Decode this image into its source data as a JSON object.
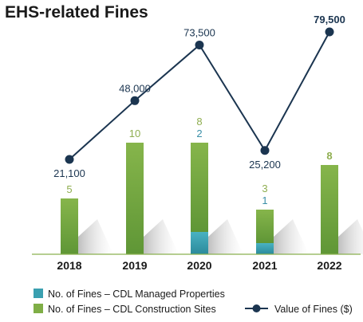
{
  "chart_data": {
    "type": "bar+line",
    "title": "EHS-related Fines",
    "categories": [
      "2018",
      "2019",
      "2020",
      "2021",
      "2022"
    ],
    "bar_series": [
      {
        "name": "No. of Fines – CDL Managed Properties",
        "values": [
          0,
          0,
          2,
          1,
          0
        ],
        "color": "#3aa0b0"
      },
      {
        "name": "No. of Fines – CDL Construction Sites",
        "values": [
          5,
          10,
          8,
          3,
          8
        ],
        "color": "#7fae46"
      }
    ],
    "bar_labels": {
      "construction": [
        "5",
        "10",
        "8",
        "3",
        "8"
      ],
      "managed": [
        "",
        "",
        "2",
        "1",
        ""
      ]
    },
    "line_series": {
      "name": "Value of Fines ($)",
      "values": [
        21100,
        48000,
        73500,
        25200,
        79500
      ],
      "labels": [
        "21,100",
        "48,000",
        "73,500",
        "25,200",
        "79,500"
      ],
      "color": "#1b3550"
    },
    "legend": {
      "managed": "No. of Fines – CDL Managed Properties",
      "construction": "No. of Fines – CDL Construction Sites",
      "value": "Value of Fines ($)"
    },
    "colors": {
      "managed": "#3aa0b0",
      "construction": "#7fae46",
      "line": "#1b3550",
      "label_construction": "#8fae50",
      "label_managed": "#3a8fa8"
    }
  }
}
